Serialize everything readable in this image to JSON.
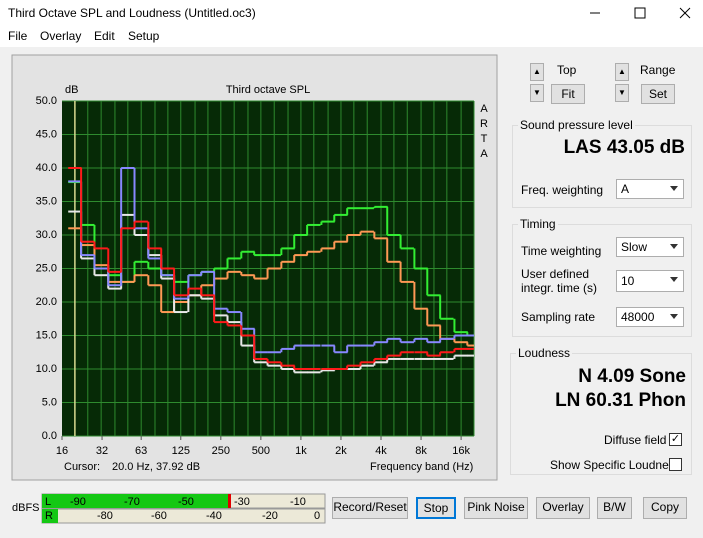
{
  "window": {
    "title": "Third Octave SPL and Loudness (Untitled.oc3)"
  },
  "menu": [
    "File",
    "Overlay",
    "Edit",
    "Setup"
  ],
  "chart_data": {
    "type": "step",
    "title": "Third octave SPL",
    "y_label": "dB",
    "x_label": "Frequency band (Hz)",
    "brand": "ARTA",
    "cursor_label": "Cursor:",
    "cursor_value": "20.0 Hz, 37.92 dB",
    "log_x": true,
    "grid": true,
    "x": [
      20,
      25,
      31.5,
      40,
      50,
      63,
      80,
      100,
      125,
      160,
      200,
      250,
      315,
      400,
      500,
      630,
      800,
      1000,
      1250,
      1600,
      2000,
      2500,
      3150,
      4000,
      5000,
      6300,
      8000,
      10000,
      12500,
      16000,
      20000
    ],
    "xlim": [
      16,
      20000
    ],
    "xticks": [
      16,
      32,
      63,
      125,
      250,
      500,
      {
        "value": 1000,
        "label": "1k"
      },
      {
        "value": 2000,
        "label": "2k"
      },
      {
        "value": 4000,
        "label": "4k"
      },
      {
        "value": 8000,
        "label": "8k"
      },
      {
        "value": 16000,
        "label": "16k"
      }
    ],
    "ylim": [
      0,
      50
    ],
    "yticks": [
      {
        "value": 0,
        "label": "0.0"
      },
      {
        "value": 5,
        "label": "5.0"
      },
      {
        "value": 10,
        "label": "10.0"
      },
      {
        "value": 15,
        "label": "15.0"
      },
      {
        "value": 20,
        "label": "20.0"
      },
      {
        "value": 25,
        "label": "25.0"
      },
      {
        "value": 30,
        "label": "30.0"
      },
      {
        "value": 35,
        "label": "35.0"
      },
      {
        "value": 40,
        "label": "40.0"
      },
      {
        "value": 45,
        "label": "45.0"
      },
      {
        "value": 50,
        "label": "50.0"
      }
    ],
    "series": [
      {
        "color": "#33ee33",
        "values": [
          37.9,
          31.5,
          25,
          24,
          23,
          26,
          25,
          24,
          23,
          24,
          24.5,
          25,
          26.5,
          27.5,
          27,
          27,
          28,
          30,
          31.5,
          32,
          33,
          34,
          34,
          34.2,
          30,
          28,
          25,
          21,
          17.5,
          15.5,
          15
        ]
      },
      {
        "color": "#ff9955",
        "values": [
          31,
          28.5,
          25.5,
          23,
          23,
          24,
          22.5,
          18.5,
          20,
          21,
          22.5,
          23.5,
          24.5,
          24,
          23.5,
          25,
          26,
          27,
          27.5,
          28,
          29,
          30,
          30.5,
          29.5,
          26,
          23,
          19,
          16.5,
          14.5,
          14,
          13.5
        ]
      },
      {
        "color": "#e8e8e8",
        "values": [
          33.5,
          26.5,
          24,
          22,
          33,
          30,
          27,
          23.5,
          18.5,
          21,
          20.5,
          18,
          17,
          13.5,
          11,
          10.5,
          10,
          9.5,
          9.5,
          9.8,
          10,
          10,
          10.5,
          11,
          11.5,
          11.5,
          11.5,
          11.5,
          11.5,
          12,
          12
        ]
      },
      {
        "color": "#8888ff",
        "values": [
          38,
          27,
          25,
          22.5,
          40,
          31,
          26.5,
          24,
          20.5,
          24,
          24.5,
          19,
          18.5,
          16,
          12.5,
          12.5,
          13,
          13.5,
          13.5,
          13.5,
          12.5,
          13.5,
          13.5,
          14,
          14.5,
          14,
          14.5,
          14,
          14.5,
          15,
          15
        ]
      },
      {
        "color": "#ff1a1a",
        "values": [
          40,
          29,
          28,
          24.5,
          31,
          32,
          28,
          25,
          21,
          22,
          21,
          17,
          16.5,
          15,
          11.5,
          11,
          10.5,
          10,
          10,
          10,
          10,
          10.5,
          11,
          11.5,
          12,
          12.5,
          12.5,
          12,
          12.5,
          13,
          13
        ]
      }
    ]
  },
  "view": {
    "top": "Top",
    "fit": "Fit",
    "range": "Range",
    "set": "Set"
  },
  "spl": {
    "title": "Sound pressure level",
    "reading": "LAS 43.05 dB",
    "weighting_label": "Freq. weighting",
    "weighting": "A"
  },
  "timing": {
    "title": "Timing",
    "time_weighting_label": "Time weighting",
    "time_weighting": "Slow",
    "integr_label": "User defined integr. time (s)",
    "integr": "10",
    "rate_label": "Sampling rate",
    "rate": "48000"
  },
  "loudness": {
    "title": "Loudness",
    "n": "N 4.09 Sone",
    "ln": "LN 60.31 Phon",
    "diffuse": "Diffuse field",
    "specific": "Show Specific Loudness"
  },
  "meter": {
    "unit": "dBFS",
    "left": "L",
    "right": "R",
    "left_scale": [
      "-90",
      "-70",
      "-50",
      "-30",
      "-10"
    ],
    "right_scale": [
      "-80",
      "-60",
      "-40",
      "-20",
      "0"
    ]
  },
  "buttons": [
    "Record/Reset",
    "Stop",
    "Pink Noise",
    "Overlay",
    "B/W",
    "Copy"
  ]
}
